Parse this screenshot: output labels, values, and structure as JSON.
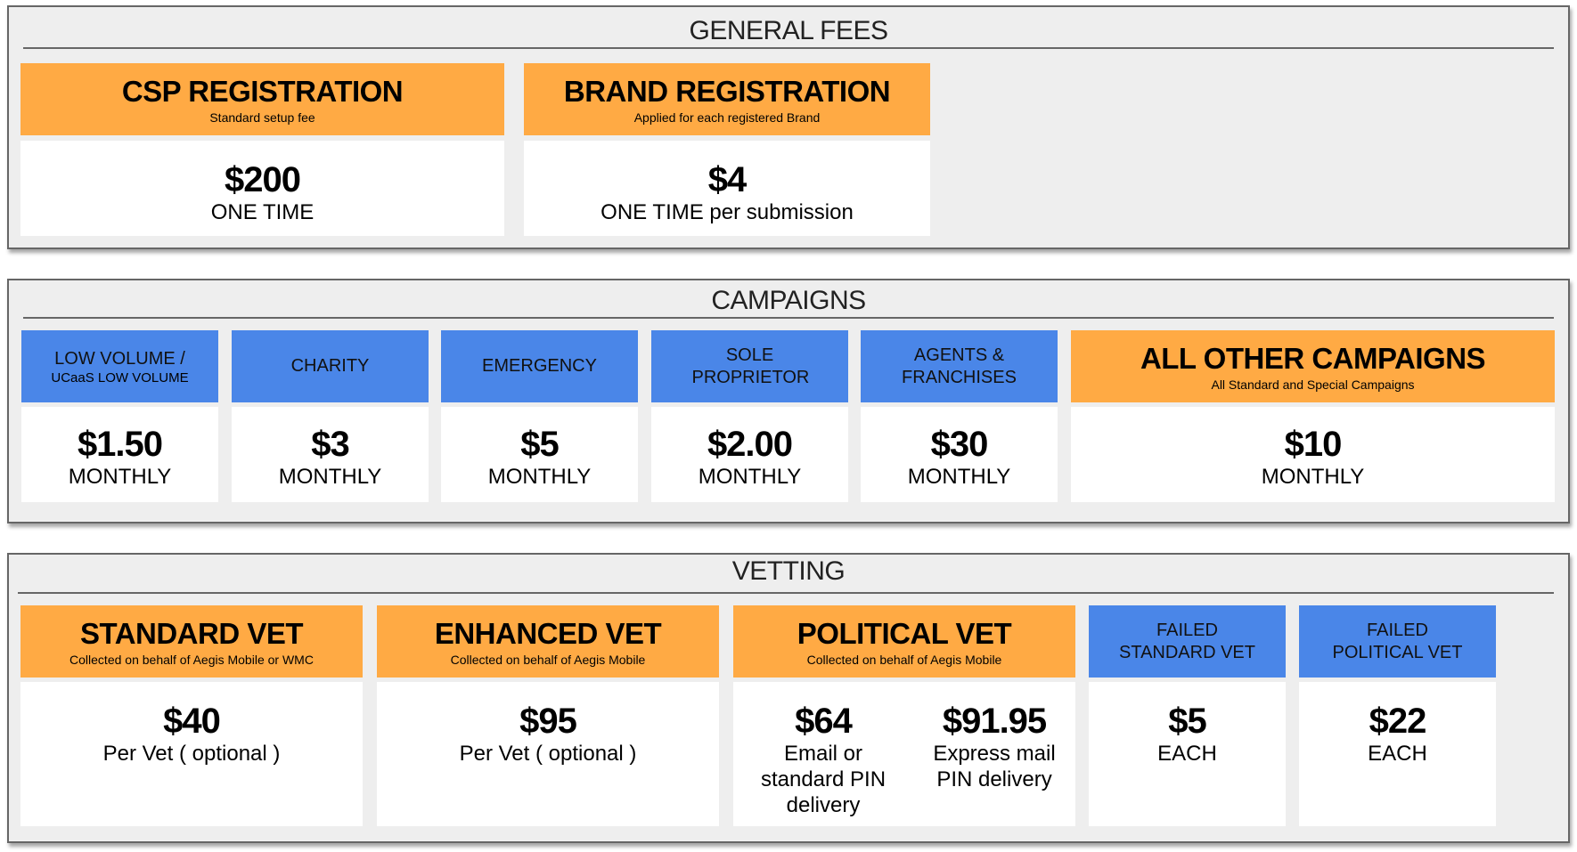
{
  "colors": {
    "orange": "#FFAA44",
    "blue": "#4A86E8",
    "panel": "#EEEEEE"
  },
  "general": {
    "title": "GENERAL FEES",
    "cards": [
      {
        "title": "CSP REGISTRATION",
        "subtitle": "Standard setup fee",
        "price": "$200",
        "unit": "ONE TIME"
      },
      {
        "title": "BRAND REGISTRATION",
        "subtitle": "Applied for each registered Brand",
        "price": "$4",
        "unit": "ONE TIME per submission"
      }
    ]
  },
  "campaigns": {
    "title": "CAMPAIGNS",
    "cards": [
      {
        "title": "LOW VOLUME /",
        "subtitle": "UCaaS LOW VOLUME",
        "price": "$1.50",
        "unit": "MONTHLY"
      },
      {
        "title": "CHARITY",
        "price": "$3",
        "unit": "MONTHLY"
      },
      {
        "title": "EMERGENCY",
        "price": "$5",
        "unit": "MONTHLY"
      },
      {
        "title": "SOLE PROPRIETOR",
        "price": "$2.00",
        "unit": "MONTHLY"
      },
      {
        "title": "AGENTS & FRANCHISES",
        "price": "$30",
        "unit": "MONTHLY"
      },
      {
        "title": "ALL OTHER CAMPAIGNS",
        "subtitle": "All Standard and Special Campaigns",
        "price": "$10",
        "unit": "MONTHLY"
      }
    ]
  },
  "vetting": {
    "title": "VETTING",
    "cards": [
      {
        "title": "STANDARD VET",
        "subtitle": "Collected on behalf of Aegis Mobile or WMC",
        "price": "$40",
        "unit": "Per Vet ( optional )"
      },
      {
        "title": "ENHANCED VET",
        "subtitle": "Collected on behalf of Aegis Mobile",
        "price": "$95",
        "unit": "Per Vet ( optional )"
      },
      {
        "title": "POLITICAL VET",
        "subtitle": "Collected on behalf of Aegis Mobile",
        "price": "$64",
        "unit": "Email or standard PIN delivery",
        "price2": "$91.95",
        "unit2": "Express mail PIN delivery"
      },
      {
        "title": "FAILED STANDARD VET",
        "price": "$5",
        "unit": "EACH"
      },
      {
        "title": "FAILED POLITICAL VET",
        "price": "$22",
        "unit": "EACH"
      }
    ]
  }
}
